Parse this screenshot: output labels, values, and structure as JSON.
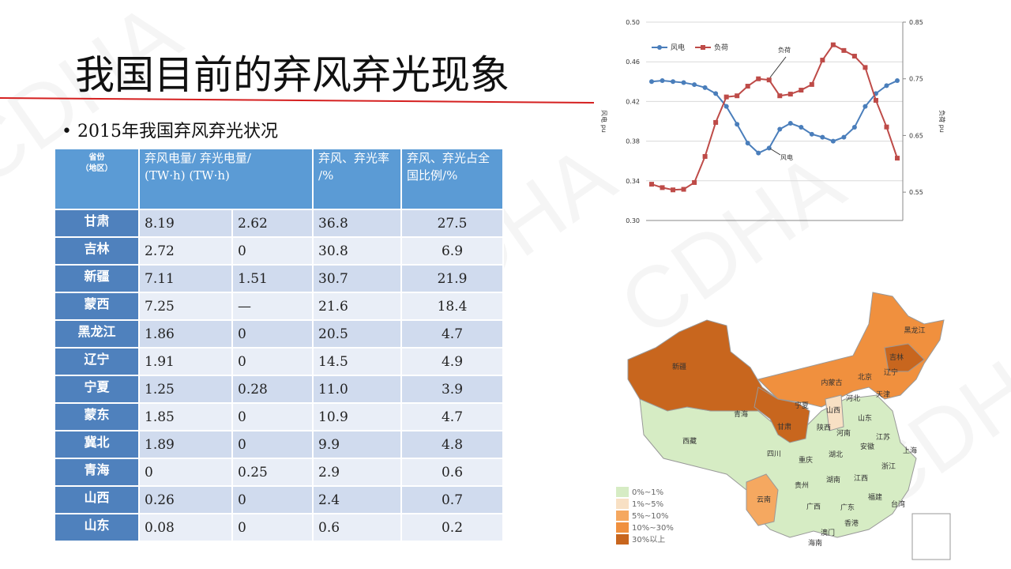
{
  "title": "我国目前的弃风弃光现象",
  "bullet": "2015年我国弃风弃光状况",
  "watermark": "CDHA",
  "table": {
    "header": [
      "省份\n（地区）",
      "弃风电量/ 弃光电量/\n(TW·h)  (TW·h)",
      " 弃风、弃光率\n/%",
      "弃风、弃光占全国比例/%"
    ],
    "rows": [
      [
        "甘肃",
        "8.19",
        "2.62",
        "36.8",
        "27.5"
      ],
      [
        "吉林",
        "2.72",
        "0",
        "30.8",
        "6.9"
      ],
      [
        "新疆",
        "7.11",
        "1.51",
        "30.7",
        "21.9"
      ],
      [
        "蒙西",
        "7.25",
        "—",
        "21.6",
        "18.4"
      ],
      [
        "黑龙江",
        "1.86",
        "0",
        "20.5",
        "4.7"
      ],
      [
        "辽宁",
        "1.91",
        "0",
        "14.5",
        "4.9"
      ],
      [
        "宁夏",
        "1.25",
        "0.28",
        "11.0",
        "3.9"
      ],
      [
        "蒙东",
        "1.85",
        "0",
        "10.9",
        "4.7"
      ],
      [
        "冀北",
        "1.89",
        "0",
        "9.9",
        "4.8"
      ],
      [
        "青海",
        "0",
        "0.25",
        "2.9",
        "0.6"
      ],
      [
        "山西",
        "0.26",
        "0",
        "2.4",
        "0.7"
      ],
      [
        "山东",
        "0.08",
        "0",
        "0.6",
        "0.2"
      ]
    ]
  },
  "chart_data": {
    "type": "line",
    "ylabel": "风电 pu",
    "y2label": "负荷 pu",
    "annotations": [
      "负荷",
      "风电"
    ],
    "ylim": [
      0.3,
      0.5
    ],
    "yticks": [
      {
        "value": 0.3,
        "label": "0.30"
      },
      {
        "value": 0.34,
        "label": "0.34"
      },
      {
        "value": 0.38,
        "label": "0.38"
      },
      {
        "value": 0.42,
        "label": "0.42"
      },
      {
        "value": 0.46,
        "label": "0.46"
      },
      {
        "value": 0.5,
        "label": "0.50"
      }
    ],
    "y2lim": [
      0.5,
      0.85
    ],
    "y2ticks": [
      0.55,
      0.65,
      0.75,
      0.85
    ],
    "grid": true,
    "series": [
      {
        "name": "风电",
        "color": "#4a7ebb",
        "marker": "circle",
        "values": [
          0.44,
          0.441,
          0.44,
          0.439,
          0.437,
          0.434,
          0.428,
          0.415,
          0.397,
          0.378,
          0.368,
          0.373,
          0.392,
          0.398,
          0.394,
          0.387,
          0.384,
          0.38,
          0.384,
          0.394,
          0.415,
          0.428,
          0.436,
          0.441
        ]
      },
      {
        "name": "负荷",
        "color": "#be4b48",
        "marker": "square",
        "axis": "y2",
        "values": [
          0.564,
          0.558,
          0.554,
          0.555,
          0.567,
          0.613,
          0.673,
          0.718,
          0.72,
          0.737,
          0.75,
          0.748,
          0.72,
          0.723,
          0.73,
          0.74,
          0.783,
          0.81,
          0.8,
          0.79,
          0.77,
          0.712,
          0.665,
          0.61
        ]
      }
    ]
  },
  "map": {
    "legend": [
      {
        "label": "0%~1%",
        "color": "#d6ecc4"
      },
      {
        "label": "1%~5%",
        "color": "#f8e0c4"
      },
      {
        "label": "5%~10%",
        "color": "#f5a860"
      },
      {
        "label": "10%~30%",
        "color": "#f0903e"
      },
      {
        "label": "30%以上",
        "color": "#c8661e"
      }
    ],
    "regions": [
      "新疆",
      "西藏",
      "青海",
      "甘肃",
      "宁夏",
      "内蒙古",
      "黑龙江",
      "吉林",
      "辽宁",
      "北京",
      "天津",
      "河北",
      "山西",
      "山东",
      "陕西",
      "河南",
      "江苏",
      "安徽",
      "上海",
      "四川",
      "重庆",
      "湖北",
      "浙江",
      "湖南",
      "贵州",
      "江西",
      "福建",
      "云南",
      "广西",
      "广东",
      "台湾",
      "香港",
      "澳门",
      "海南"
    ]
  }
}
